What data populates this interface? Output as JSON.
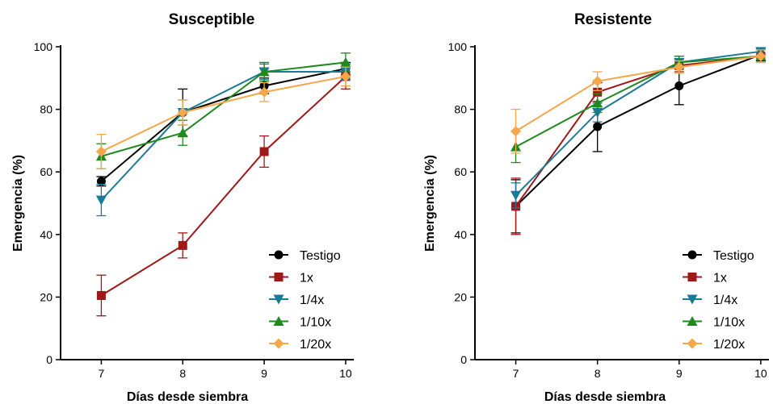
{
  "chart_data": [
    {
      "type": "line",
      "title": "Susceptible",
      "xlabel": "Días desde siembra",
      "ylabel": "Emergencia (%)",
      "x": [
        7,
        8,
        9,
        10
      ],
      "xlim": [
        6.5,
        10.1
      ],
      "ylim": [
        0,
        100
      ],
      "yticks": [
        0,
        20,
        40,
        60,
        80,
        100
      ],
      "xticks": [
        7,
        8,
        9,
        10
      ],
      "legend_position": "bottom-right",
      "series": [
        {
          "name": "Testigo",
          "color": "#000000",
          "marker": "circle",
          "values": [
            57,
            79,
            87.5,
            93
          ],
          "errors": [
            1.5,
            7.5,
            2.5,
            2
          ]
        },
        {
          "name": "1x",
          "color": "#a01818",
          "marker": "square",
          "values": [
            20.5,
            36.5,
            66.5,
            90.5
          ],
          "errors": [
            6.5,
            4,
            5,
            4
          ]
        },
        {
          "name": "1/4x",
          "color": "#1a7a96",
          "marker": "triangle-down",
          "values": [
            51,
            79,
            92,
            92
          ],
          "errors": [
            5,
            4,
            2.5,
            2.5
          ]
        },
        {
          "name": "1/10x",
          "color": "#1e8a1e",
          "marker": "triangle-up",
          "values": [
            65,
            72.5,
            92,
            95
          ],
          "errors": [
            4,
            4,
            3,
            3
          ]
        },
        {
          "name": "1/20x",
          "color": "#f5a74a",
          "marker": "diamond",
          "values": [
            66.5,
            79,
            85.5,
            90.5
          ],
          "errors": [
            5.5,
            4,
            3,
            3
          ]
        }
      ]
    },
    {
      "type": "line",
      "title": "Resistente",
      "xlabel": "Días desde siembra",
      "ylabel": "Emergencia (%)",
      "x": [
        7,
        8,
        9,
        10
      ],
      "xlim": [
        6.5,
        10.1
      ],
      "ylim": [
        0,
        100
      ],
      "yticks": [
        0,
        20,
        40,
        60,
        80,
        100
      ],
      "xticks": [
        7,
        8,
        9,
        10
      ],
      "legend_position": "bottom-right",
      "series": [
        {
          "name": "Testigo",
          "color": "#000000",
          "marker": "circle",
          "values": [
            49,
            74.5,
            87.5,
            97.5
          ],
          "errors": [
            8.5,
            8,
            6,
            2
          ]
        },
        {
          "name": "1x",
          "color": "#a01818",
          "marker": "square",
          "values": [
            49,
            85.5,
            94,
            97
          ],
          "errors": [
            9,
            3,
            2,
            2
          ]
        },
        {
          "name": "1/4x",
          "color": "#1a7a96",
          "marker": "triangle-down",
          "values": [
            52.5,
            79,
            95,
            98.5
          ],
          "errors": [
            4,
            3,
            2,
            1
          ]
        },
        {
          "name": "1/10x",
          "color": "#1e8a1e",
          "marker": "triangle-up",
          "values": [
            68,
            82,
            95,
            97
          ],
          "errors": [
            5,
            3,
            2,
            2
          ]
        },
        {
          "name": "1/20x",
          "color": "#f5a74a",
          "marker": "diamond",
          "values": [
            73,
            89,
            93.5,
            97
          ],
          "errors": [
            7,
            3,
            2,
            2
          ]
        }
      ]
    }
  ]
}
